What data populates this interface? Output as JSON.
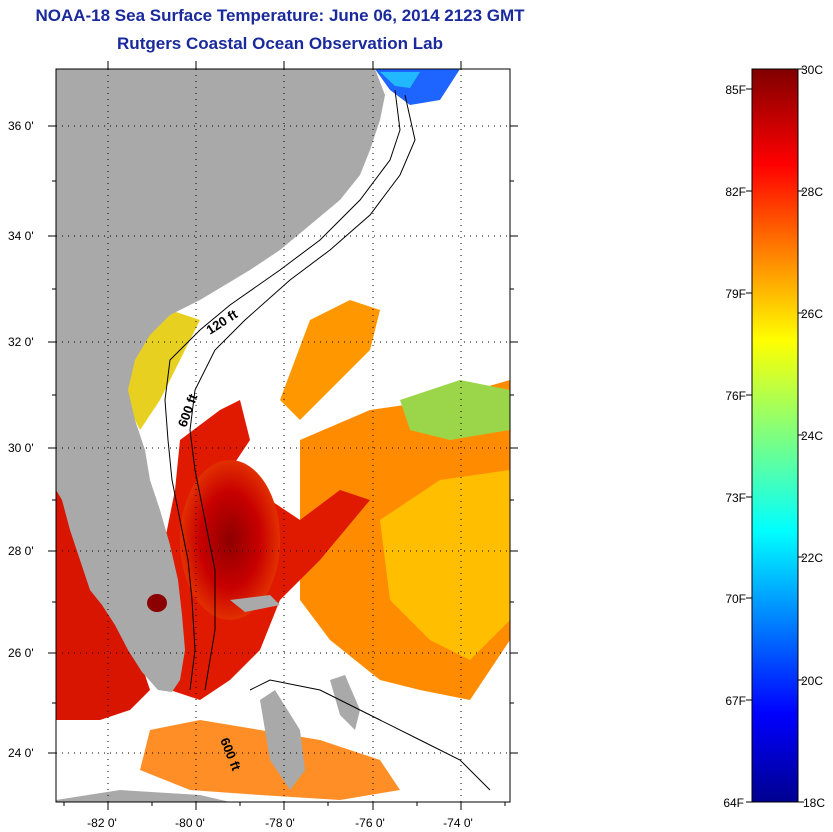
{
  "header": {
    "title": "NOAA-18 Sea Surface Temperature:  June 06, 2014 2123 GMT",
    "subtitle": "Rutgers Coastal Ocean Observation Lab"
  },
  "map": {
    "lon_ticks": [
      "-82 0'",
      "-80 0'",
      "-78 0'",
      "-76 0'",
      "-74 0'"
    ],
    "lat_ticks": [
      "36 0'",
      "34 0'",
      "32 0'",
      "30 0'",
      "28 0'",
      "26 0'",
      "24 0'"
    ],
    "lon_range": [
      -83.0,
      -72.6
    ],
    "lat_range": [
      23.0,
      37.1
    ],
    "contour_labels": [
      "120 ft",
      "600 ft",
      "600 ft"
    ],
    "colors": {
      "land": "#a9a9a9",
      "no_data": "#ffffff"
    }
  },
  "colorbar": {
    "fahrenheit_labels": [
      "85F",
      "82F",
      "79F",
      "76F",
      "73F",
      "70F",
      "67F",
      "64F"
    ],
    "celsius_labels": [
      "30C",
      "28C",
      "26C",
      "24C",
      "22C",
      "20C",
      "18C"
    ],
    "range_celsius": [
      18,
      30
    ],
    "colormap": "jet"
  }
}
